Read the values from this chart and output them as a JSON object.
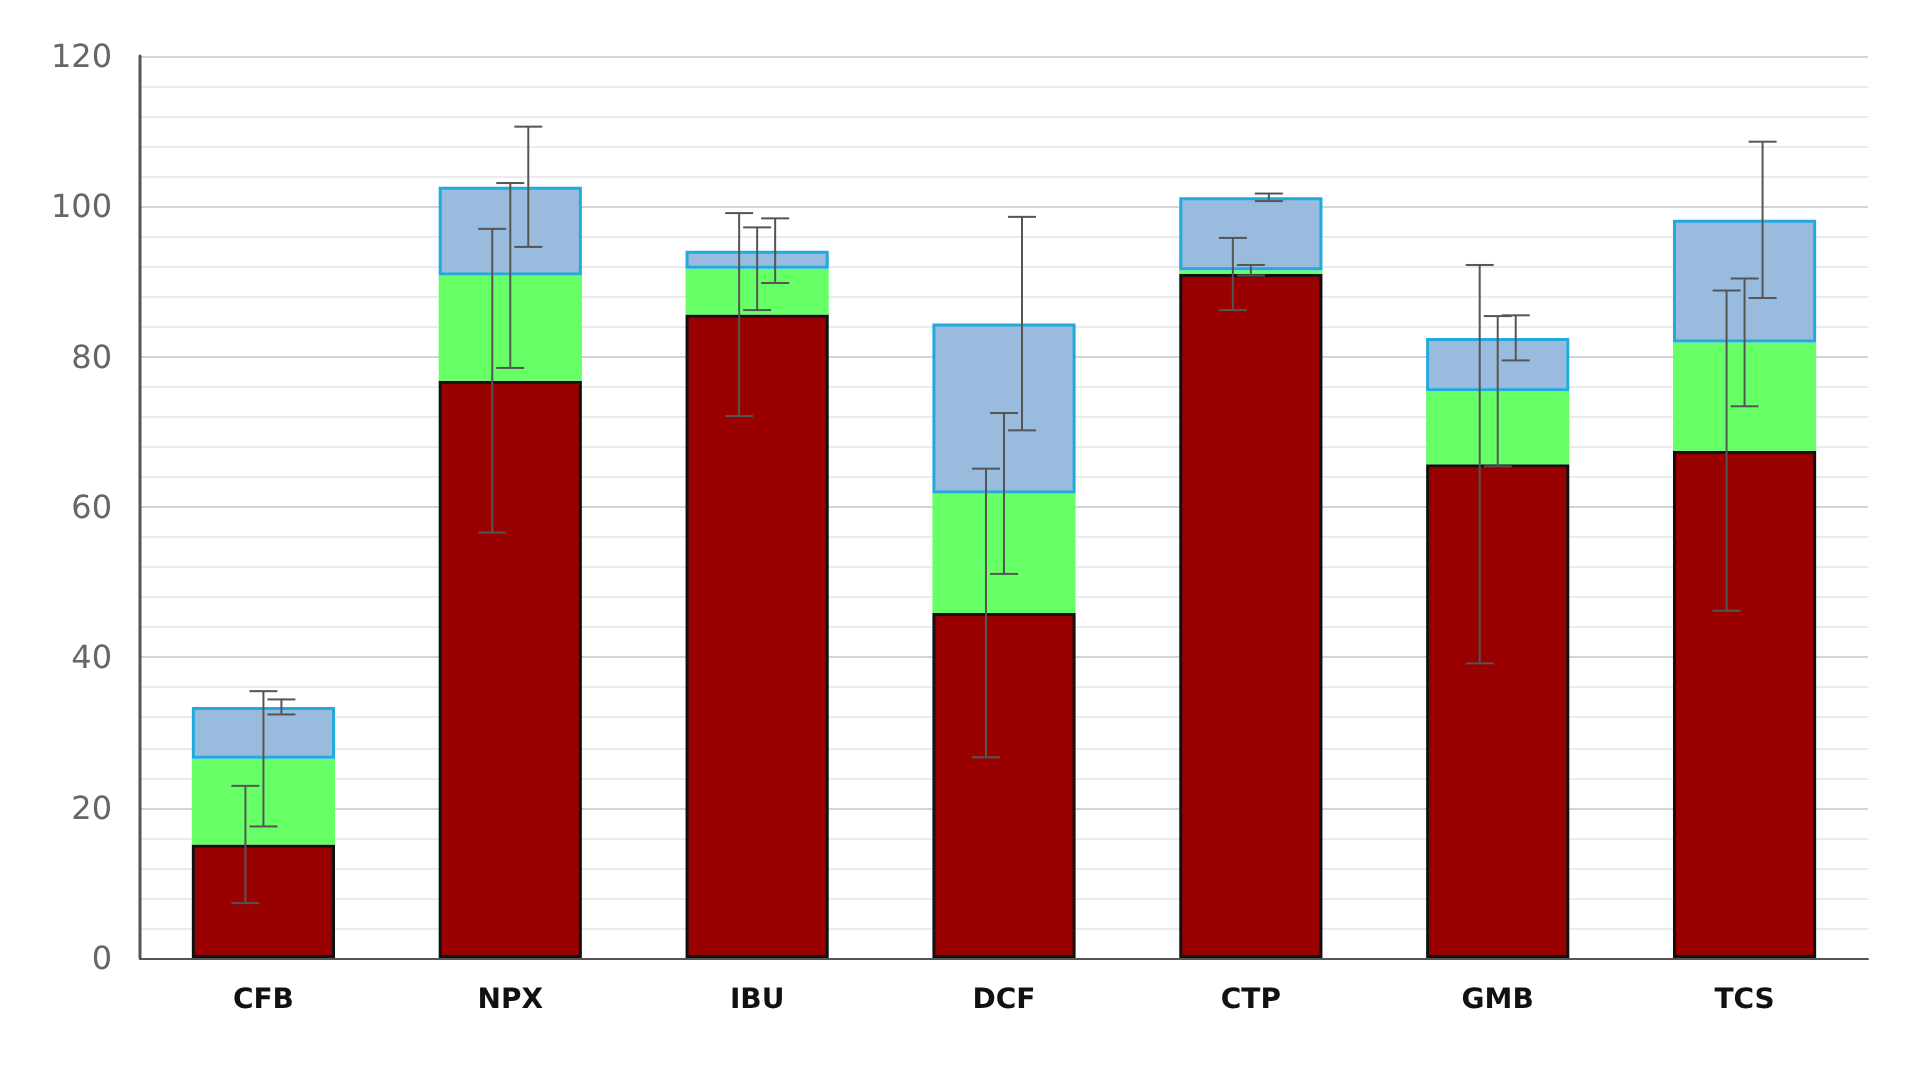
{
  "chart_data": {
    "type": "bar",
    "stacked": true,
    "categories": [
      "CFB",
      "NPX",
      "IBU",
      "DCF",
      "CTP",
      "GMB",
      "TCS"
    ],
    "series": [
      {
        "color": "#990000",
        "values": [
          15.1,
          76.8,
          85.6,
          45.9,
          91,
          65.7,
          67.5
        ],
        "errors": [
          7.8,
          20.2,
          13.5,
          19.2,
          4.8,
          26.5,
          21.3
        ]
      },
      {
        "color": "#66ff66",
        "values": [
          11.4,
          14,
          6.1,
          15.9,
          0.5,
          9.7,
          14.4
        ],
        "errors": [
          9,
          12.3,
          5.5,
          10.7,
          0.7,
          10,
          8.5
        ]
      },
      {
        "color": "#99bbdd",
        "values": [
          6.9,
          11.8,
          2.4,
          22.6,
          9.7,
          7.1,
          16.3
        ],
        "errors": [
          1,
          8,
          4.3,
          14.2,
          0.5,
          3,
          10.4
        ]
      }
    ],
    "ylim": [
      0,
      120
    ],
    "yticks": [
      0,
      20,
      40,
      60,
      80,
      100,
      120
    ],
    "grid": "y"
  }
}
